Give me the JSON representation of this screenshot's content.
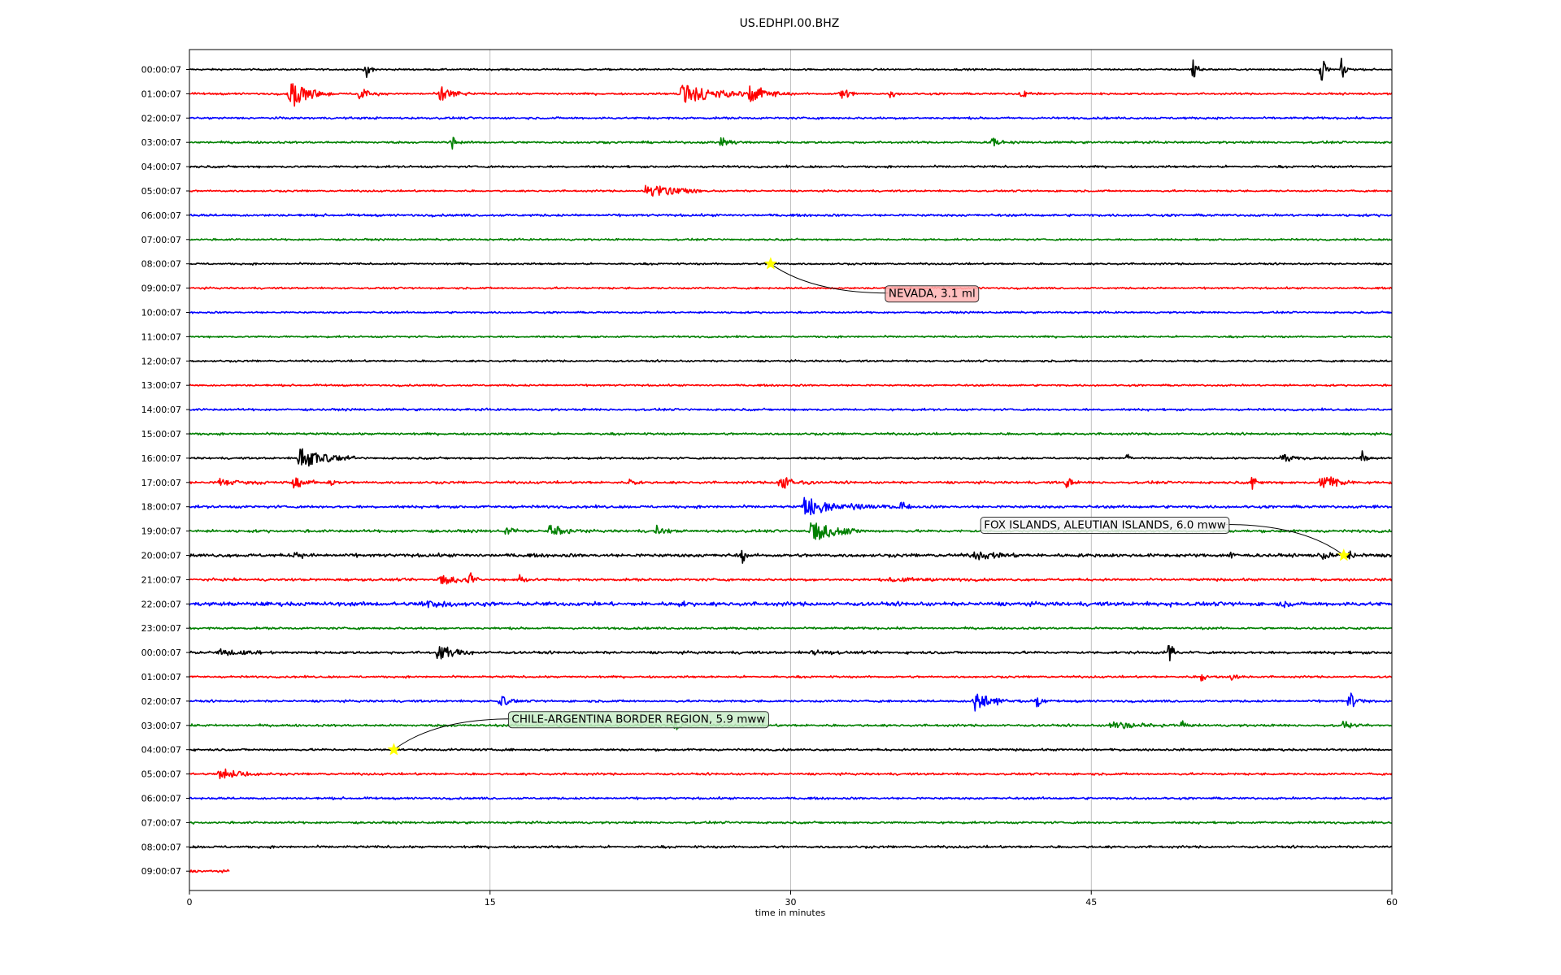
{
  "chart_data": {
    "type": "line",
    "title": "US.EDHPI.00.BHZ",
    "xlabel": "time in minutes",
    "ylabel": "",
    "xlim": [
      0,
      60
    ],
    "x_ticks": [
      0,
      15,
      30,
      45,
      60
    ],
    "vertical_grid": true,
    "trace_colors": [
      "#000000",
      "#ff0000",
      "#0000ff",
      "#008000"
    ],
    "rows": [
      {
        "label": "00:00:07",
        "noise": 1.0,
        "bursts": [
          {
            "t": 8.8,
            "amp": 12,
            "dur": 0.4
          },
          {
            "t": 50.1,
            "amp": 14,
            "dur": 0.4
          },
          {
            "t": 56.5,
            "amp": 22,
            "dur": 0.25
          },
          {
            "t": 57.5,
            "amp": 16,
            "dur": 0.3
          }
        ]
      },
      {
        "label": "01:00:07",
        "noise": 1.2,
        "bursts": [
          {
            "t": 5.0,
            "amp": 20,
            "dur": 1.6
          },
          {
            "t": 8.5,
            "amp": 8,
            "dur": 1.0
          },
          {
            "t": 12.5,
            "amp": 12,
            "dur": 1.0
          },
          {
            "t": 24.5,
            "amp": 13,
            "dur": 3.6
          },
          {
            "t": 28.0,
            "amp": 12,
            "dur": 1.6
          },
          {
            "t": 32.5,
            "amp": 9,
            "dur": 0.8
          },
          {
            "t": 35.0,
            "amp": 6,
            "dur": 0.5
          },
          {
            "t": 41.5,
            "amp": 6,
            "dur": 0.7
          }
        ]
      },
      {
        "label": "02:00:07",
        "noise": 1.3,
        "bursts": []
      },
      {
        "label": "03:00:07",
        "noise": 1.3,
        "bursts": [
          {
            "t": 13.1,
            "amp": 10,
            "dur": 0.3
          },
          {
            "t": 26.5,
            "amp": 6,
            "dur": 1.0
          },
          {
            "t": 40.0,
            "amp": 10,
            "dur": 0.5
          }
        ]
      },
      {
        "label": "04:00:07",
        "noise": 1.3,
        "bursts": []
      },
      {
        "label": "05:00:07",
        "noise": 1.1,
        "bursts": [
          {
            "t": 22.8,
            "amp": 9,
            "dur": 2.6
          }
        ]
      },
      {
        "label": "06:00:07",
        "noise": 1.4,
        "bursts": []
      },
      {
        "label": "07:00:07",
        "noise": 1.1,
        "bursts": []
      },
      {
        "label": "08:00:07",
        "noise": 1.1,
        "bursts": []
      },
      {
        "label": "09:00:07",
        "noise": 1.1,
        "bursts": []
      },
      {
        "label": "10:00:07",
        "noise": 1.1,
        "bursts": []
      },
      {
        "label": "11:00:07",
        "noise": 1.1,
        "bursts": []
      },
      {
        "label": "12:00:07",
        "noise": 1.1,
        "bursts": []
      },
      {
        "label": "13:00:07",
        "noise": 1.1,
        "bursts": []
      },
      {
        "label": "14:00:07",
        "noise": 1.3,
        "bursts": []
      },
      {
        "label": "15:00:07",
        "noise": 1.3,
        "bursts": []
      },
      {
        "label": "16:00:07",
        "noise": 1.2,
        "bursts": [
          {
            "t": 5.5,
            "amp": 14,
            "dur": 2.2
          },
          {
            "t": 46.8,
            "amp": 6,
            "dur": 0.4
          },
          {
            "t": 54.5,
            "amp": 6,
            "dur": 1.6
          },
          {
            "t": 58.5,
            "amp": 9,
            "dur": 0.5
          }
        ]
      },
      {
        "label": "17:00:07",
        "noise": 1.5,
        "bursts": [
          {
            "t": 1.5,
            "amp": 5,
            "dur": 2.5
          },
          {
            "t": 5.2,
            "amp": 8,
            "dur": 1.2
          },
          {
            "t": 7.0,
            "amp": 6,
            "dur": 0.4
          },
          {
            "t": 22.0,
            "amp": 6,
            "dur": 0.4
          },
          {
            "t": 29.5,
            "amp": 9,
            "dur": 1.5
          },
          {
            "t": 43.8,
            "amp": 12,
            "dur": 0.3
          },
          {
            "t": 53.0,
            "amp": 10,
            "dur": 0.4
          },
          {
            "t": 56.5,
            "amp": 12,
            "dur": 1.3
          }
        ]
      },
      {
        "label": "18:00:07",
        "noise": 1.6,
        "bursts": [
          {
            "t": 30.7,
            "amp": 14,
            "dur": 1.8
          },
          {
            "t": 33.0,
            "amp": 4,
            "dur": 3.0
          },
          {
            "t": 35.5,
            "amp": 8,
            "dur": 0.4
          },
          {
            "t": 59.2,
            "amp": 5,
            "dur": 0.3
          }
        ]
      },
      {
        "label": "19:00:07",
        "noise": 1.6,
        "bursts": [
          {
            "t": 15.8,
            "amp": 8,
            "dur": 0.6
          },
          {
            "t": 18.0,
            "amp": 9,
            "dur": 1.5
          },
          {
            "t": 23.3,
            "amp": 7,
            "dur": 0.8
          },
          {
            "t": 31.0,
            "amp": 14,
            "dur": 2.2
          }
        ]
      },
      {
        "label": "20:00:07",
        "noise": 2.0,
        "bursts": [
          {
            "t": 5.3,
            "amp": 6,
            "dur": 0.5
          },
          {
            "t": 27.6,
            "amp": 10,
            "dur": 0.3
          },
          {
            "t": 39.2,
            "amp": 6,
            "dur": 2.5
          },
          {
            "t": 52.0,
            "amp": 6,
            "dur": 0.3
          },
          {
            "t": 56.5,
            "amp": 6,
            "dur": 1.0
          },
          {
            "t": 57.8,
            "amp": 6,
            "dur": 0.8
          }
        ]
      },
      {
        "label": "21:00:07",
        "noise": 1.5,
        "bursts": [
          {
            "t": 12.5,
            "amp": 7,
            "dur": 1.6
          },
          {
            "t": 14.0,
            "amp": 12,
            "dur": 0.3
          },
          {
            "t": 16.5,
            "amp": 10,
            "dur": 0.4
          },
          {
            "t": 35.0,
            "amp": 3,
            "dur": 4.0
          }
        ]
      },
      {
        "label": "22:00:07",
        "noise": 2.4,
        "bursts": [
          {
            "t": 11.5,
            "amp": 5,
            "dur": 3.0
          },
          {
            "t": 24.5,
            "amp": 5,
            "dur": 0.5
          },
          {
            "t": 49.0,
            "amp": 4,
            "dur": 0.4
          },
          {
            "t": 54.5,
            "amp": 5,
            "dur": 0.5
          }
        ]
      },
      {
        "label": "23:00:07",
        "noise": 1.3,
        "bursts": []
      },
      {
        "label": "00:00:07",
        "noise": 1.6,
        "bursts": [
          {
            "t": 1.5,
            "amp": 4,
            "dur": 2.5
          },
          {
            "t": 12.4,
            "amp": 12,
            "dur": 1.4
          },
          {
            "t": 31.0,
            "amp": 5,
            "dur": 1.2
          },
          {
            "t": 48.9,
            "amp": 14,
            "dur": 0.4
          }
        ]
      },
      {
        "label": "01:00:07",
        "noise": 1.2,
        "bursts": [
          {
            "t": 50.5,
            "amp": 6,
            "dur": 0.4
          },
          {
            "t": 52.0,
            "amp": 5,
            "dur": 0.8
          }
        ]
      },
      {
        "label": "02:00:07",
        "noise": 1.3,
        "bursts": [
          {
            "t": 15.5,
            "amp": 9,
            "dur": 0.7
          },
          {
            "t": 39.2,
            "amp": 14,
            "dur": 1.6
          },
          {
            "t": 42.3,
            "amp": 8,
            "dur": 0.4
          },
          {
            "t": 57.9,
            "amp": 14,
            "dur": 0.5
          }
        ]
      },
      {
        "label": "03:00:07",
        "noise": 1.4,
        "bursts": [
          {
            "t": 24.2,
            "amp": 8,
            "dur": 0.5
          },
          {
            "t": 46.0,
            "amp": 4,
            "dur": 4.5
          },
          {
            "t": 49.5,
            "amp": 9,
            "dur": 0.3
          },
          {
            "t": 57.6,
            "amp": 8,
            "dur": 0.5
          }
        ]
      },
      {
        "label": "04:00:07",
        "noise": 1.3,
        "bursts": []
      },
      {
        "label": "05:00:07",
        "noise": 1.3,
        "bursts": [
          {
            "t": 1.5,
            "amp": 8,
            "dur": 2.0
          }
        ]
      },
      {
        "label": "06:00:07",
        "noise": 1.3,
        "bursts": []
      },
      {
        "label": "07:00:07",
        "noise": 1.3,
        "bursts": []
      },
      {
        "label": "08:00:07",
        "noise": 1.4,
        "bursts": []
      },
      {
        "label": "09:00:07",
        "noise": 1.4,
        "bursts": [],
        "end_minute": 2.0
      }
    ],
    "annotations": [
      {
        "text": "NEVADA, 3.1 ml",
        "row": 8,
        "minute": 29.0
      },
      {
        "text": "FOX ISLANDS, ALEUTIAN ISLANDS, 6.0 mww",
        "row": 20,
        "minute": 57.6
      },
      {
        "text": "CHILE-ARGENTINA BORDER REGION, 5.9 mww",
        "row": 28,
        "minute": 10.2
      }
    ],
    "annotation_marker_color": "#ffff00",
    "annotation_box_colors": [
      "#ffb3b3",
      "#f2f2f2",
      "#c8ecc8"
    ]
  }
}
